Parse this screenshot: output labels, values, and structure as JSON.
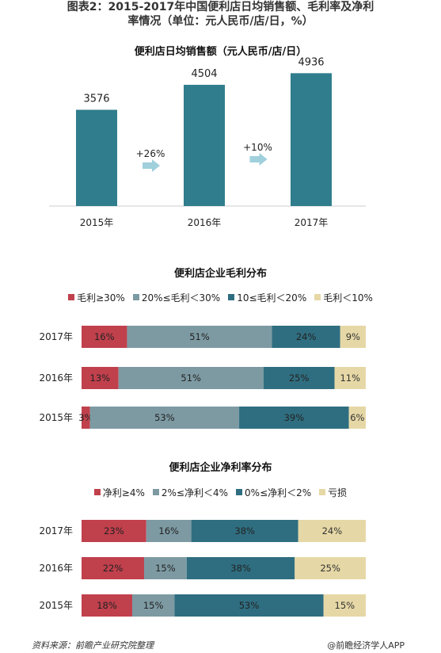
{
  "page": {
    "title_line1": "图表2：2015-2017年中国便利店日均销售额、毛利率及净利",
    "title_line2": "率情况（单位：元人民币/店/日，%）",
    "source": "资料来源：前瞻产业研究院整理",
    "credit": "@前瞻经济学人APP"
  },
  "colors": {
    "bar_teal": "#2f7d8d",
    "red": "#c0404c",
    "gray": "#7d9aa3",
    "dark_teal": "#2f6e80",
    "beige": "#e6d8a6",
    "arrow": "#9fd0dc"
  },
  "chart_data": [
    {
      "type": "bar",
      "title": "便利店日均销售额（元人民币/店/日）",
      "categories": [
        "2015年",
        "2016年",
        "2017年"
      ],
      "values": [
        3576,
        4504,
        4936
      ],
      "value_labels": [
        "3576",
        "4504",
        "4936"
      ],
      "growth_annotations": [
        "+26%",
        "+10%"
      ],
      "ylim": [
        0,
        5300
      ]
    },
    {
      "type": "bar",
      "stacked": true,
      "orientation": "horizontal",
      "title": "便利店企业毛利分布",
      "categories": [
        "2017年",
        "2016年",
        "2015年"
      ],
      "series": [
        {
          "name": "毛利≥30%",
          "values": [
            16,
            13,
            3
          ],
          "labels": [
            "16%",
            "13%",
            "3%"
          ]
        },
        {
          "name": "20%≤毛利＜30%",
          "values": [
            51,
            51,
            53
          ],
          "labels": [
            "51%",
            "51%",
            "53%"
          ]
        },
        {
          "name": "10≤毛利＜20%",
          "values": [
            24,
            25,
            39
          ],
          "labels": [
            "24%",
            "25%",
            "39%"
          ]
        },
        {
          "name": "毛利＜10%",
          "values": [
            9,
            11,
            6
          ],
          "labels": [
            "9%",
            "11%",
            "6%"
          ]
        }
      ],
      "legend_position": "top"
    },
    {
      "type": "bar",
      "stacked": true,
      "orientation": "horizontal",
      "title": "便利店企业净利率分布",
      "categories": [
        "2017年",
        "2016年",
        "2015年"
      ],
      "series": [
        {
          "name": "净利≥4%",
          "values": [
            23,
            22,
            18
          ],
          "labels": [
            "23%",
            "22%",
            "18%"
          ]
        },
        {
          "name": "2%≤净利＜4%",
          "values": [
            16,
            15,
            15
          ],
          "labels": [
            "16%",
            "15%",
            "15%"
          ]
        },
        {
          "name": "0%≤净利＜2%",
          "values": [
            38,
            38,
            53
          ],
          "labels": [
            "38%",
            "38%",
            "53%"
          ]
        },
        {
          "name": "亏损",
          "values": [
            24,
            25,
            15
          ],
          "labels": [
            "24%",
            "25%",
            "15%"
          ]
        }
      ],
      "legend_position": "top"
    }
  ]
}
